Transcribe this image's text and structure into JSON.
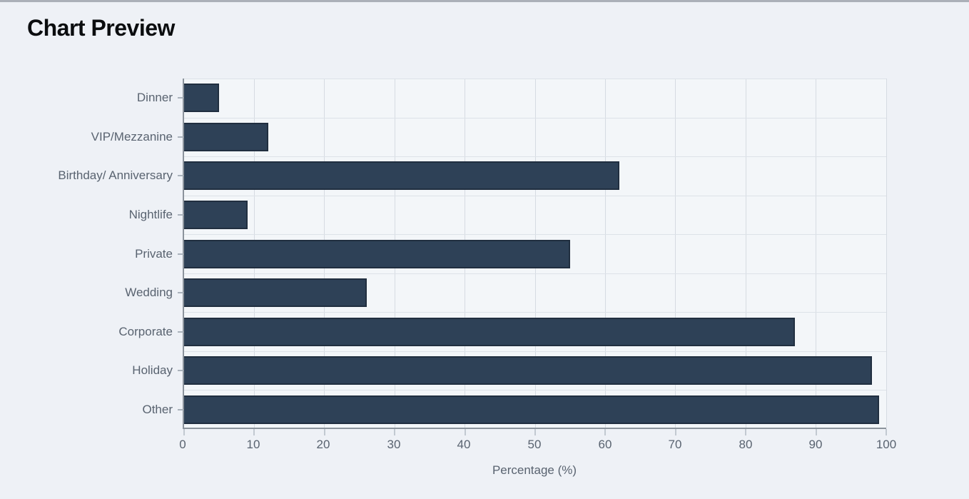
{
  "page": {
    "title": "Chart Preview"
  },
  "chart_data": {
    "type": "bar",
    "orientation": "horizontal",
    "title": "Chart Preview",
    "categories": [
      "Dinner",
      "VIP/Mezzanine",
      "Birthday/ Anniversary",
      "Nightlife",
      "Private",
      "Wedding",
      "Corporate",
      "Holiday",
      "Other"
    ],
    "values": [
      5,
      12,
      62,
      9,
      55,
      26,
      87,
      98,
      99
    ],
    "xlabel": "Percentage (%)",
    "ylabel": "",
    "xlim": [
      0,
      100
    ],
    "xticks": [
      0,
      10,
      20,
      30,
      40,
      50,
      60,
      70,
      80,
      90,
      100
    ],
    "grid": true,
    "legend": "none",
    "colors": {
      "bar_fill": "#2e4157",
      "bar_border": "#1e2a38",
      "page_background": "#eef1f6",
      "plot_background": "#f3f6f9",
      "gridline": "#d6dbe2",
      "row_line": "#dde2e8",
      "axis_line": "#8b939c",
      "label_text": "#596370",
      "title_text": "#0b0d0f"
    }
  }
}
